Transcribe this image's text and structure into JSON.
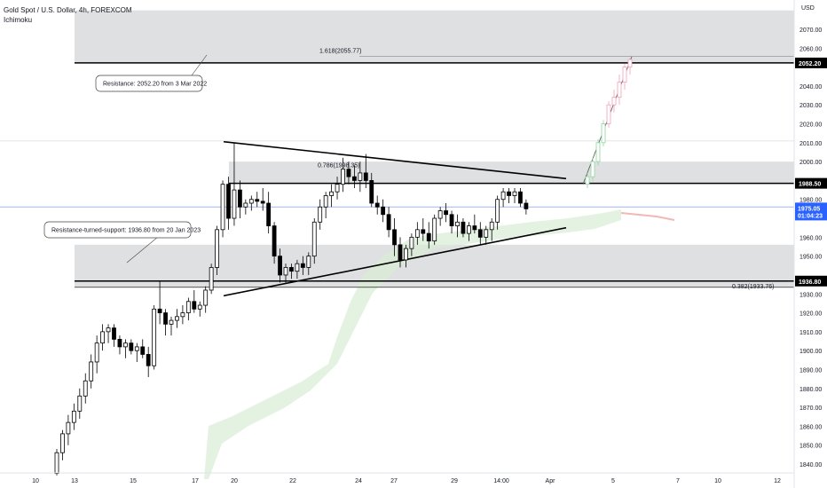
{
  "header": {
    "symbol_line": "Gold Spot / U.S. Dollar, 4h, FOREXCOM",
    "indicator": "Ichimoku"
  },
  "chart_data": {
    "type": "candlestick",
    "currency_label": "USD",
    "y_ticks": [
      1840,
      1850,
      1860,
      1870,
      1880,
      1890,
      1900,
      1910,
      1920,
      1930,
      1950,
      1960,
      1980,
      1990,
      2000,
      2010,
      2020,
      2030,
      2040,
      2060,
      2070
    ],
    "ylim": [
      1836,
      2080
    ],
    "x_ticks": [
      "10",
      "13",
      "15",
      "17",
      "20",
      "22",
      "24",
      "27",
      "29",
      "14:00",
      "Apr",
      "5",
      "7",
      "10",
      "12"
    ],
    "levels": {
      "resistance": "2052.20",
      "mid_resistance": "1988.50",
      "support": "1936.80",
      "current_price": "1975.05",
      "countdown": "01:04:23"
    },
    "fib_labels": {
      "ext": "1.618(2055.77)",
      "fib786": "0.786(1998.35)",
      "fib382": "0.382(1933.76)"
    },
    "annotations": {
      "resistance": "Resistance: 2052.20 from 3 Mar 2022",
      "support": "Resistance-turned-support: 1936.80 from 20 Jan 2023"
    },
    "zones": [
      {
        "from": 2052.2,
        "to": 2080
      },
      {
        "from": 1988.5,
        "to": 2000
      },
      {
        "from": 1933.5,
        "to": 1956
      }
    ],
    "candles": [
      [
        1835,
        1848,
        1834,
        1846
      ],
      [
        1846,
        1858,
        1842,
        1856
      ],
      [
        1856,
        1866,
        1850,
        1862
      ],
      [
        1862,
        1872,
        1858,
        1868
      ],
      [
        1868,
        1880,
        1864,
        1876
      ],
      [
        1876,
        1888,
        1872,
        1884
      ],
      [
        1884,
        1898,
        1880,
        1894
      ],
      [
        1894,
        1908,
        1888,
        1904
      ],
      [
        1904,
        1914,
        1900,
        1910
      ],
      [
        1910,
        1914,
        1904,
        1912
      ],
      [
        1912,
        1914,
        1902,
        1906
      ],
      [
        1906,
        1908,
        1898,
        1902
      ],
      [
        1902,
        1906,
        1896,
        1904
      ],
      [
        1904,
        1906,
        1898,
        1900
      ],
      [
        1900,
        1904,
        1894,
        1902
      ],
      [
        1902,
        1906,
        1896,
        1898
      ],
      [
        1898,
        1902,
        1886,
        1892
      ],
      [
        1892,
        1924,
        1890,
        1922
      ],
      [
        1922,
        1937,
        1914,
        1920
      ],
      [
        1920,
        1922,
        1908,
        1914
      ],
      [
        1914,
        1918,
        1908,
        1916
      ],
      [
        1916,
        1922,
        1912,
        1918
      ],
      [
        1918,
        1924,
        1914,
        1920
      ],
      [
        1920,
        1928,
        1916,
        1926
      ],
      [
        1926,
        1932,
        1920,
        1922
      ],
      [
        1922,
        1926,
        1918,
        1924
      ],
      [
        1924,
        1934,
        1920,
        1932
      ],
      [
        1932,
        1946,
        1930,
        1944
      ],
      [
        1944,
        1966,
        1940,
        1964
      ],
      [
        1964,
        1990,
        1960,
        1988
      ],
      [
        1988,
        1992,
        1964,
        1970
      ],
      [
        1970,
        2010,
        1966,
        1985
      ],
      [
        1985,
        1990,
        1970,
        1976
      ],
      [
        1976,
        1980,
        1972,
        1978
      ],
      [
        1978,
        1982,
        1974,
        1980
      ],
      [
        1980,
        1984,
        1976,
        1979
      ],
      [
        1979,
        1986,
        1974,
        1978
      ],
      [
        1978,
        1984,
        1962,
        1966
      ],
      [
        1966,
        1968,
        1946,
        1950
      ],
      [
        1950,
        1954,
        1936,
        1940
      ],
      [
        1940,
        1946,
        1936,
        1944
      ],
      [
        1944,
        1946,
        1938,
        1942
      ],
      [
        1942,
        1948,
        1938,
        1946
      ],
      [
        1946,
        1950,
        1940,
        1944
      ],
      [
        1944,
        1952,
        1940,
        1950
      ],
      [
        1950,
        1970,
        1946,
        1968
      ],
      [
        1968,
        1980,
        1964,
        1976
      ],
      [
        1976,
        1984,
        1970,
        1982
      ],
      [
        1982,
        1988,
        1976,
        1984
      ],
      [
        1984,
        1992,
        1980,
        1988
      ],
      [
        1988,
        2002,
        1984,
        1996
      ],
      [
        1996,
        2000,
        1988,
        1992
      ],
      [
        1992,
        1998,
        1986,
        1990
      ],
      [
        1990,
        2000,
        1984,
        1994
      ],
      [
        1994,
        2004,
        1986,
        1990
      ],
      [
        1990,
        1994,
        1976,
        1978
      ],
      [
        1978,
        1982,
        1972,
        1976
      ],
      [
        1976,
        1980,
        1968,
        1972
      ],
      [
        1972,
        1976,
        1960,
        1964
      ],
      [
        1964,
        1970,
        1950,
        1956
      ],
      [
        1956,
        1960,
        1944,
        1948
      ],
      [
        1948,
        1956,
        1944,
        1954
      ],
      [
        1954,
        1962,
        1950,
        1960
      ],
      [
        1960,
        1968,
        1956,
        1964
      ],
      [
        1964,
        1970,
        1958,
        1962
      ],
      [
        1962,
        1968,
        1954,
        1958
      ],
      [
        1958,
        1972,
        1956,
        1970
      ],
      [
        1970,
        1976,
        1966,
        1974
      ],
      [
        1974,
        1978,
        1968,
        1972
      ],
      [
        1972,
        1974,
        1962,
        1966
      ],
      [
        1966,
        1972,
        1960,
        1968
      ],
      [
        1968,
        1970,
        1960,
        1962
      ],
      [
        1962,
        1968,
        1958,
        1966
      ],
      [
        1966,
        1972,
        1962,
        1964
      ],
      [
        1964,
        1968,
        1956,
        1960
      ],
      [
        1960,
        1966,
        1956,
        1964
      ],
      [
        1964,
        1970,
        1958,
        1968
      ],
      [
        1968,
        1982,
        1964,
        1980
      ],
      [
        1980,
        1986,
        1976,
        1984
      ],
      [
        1984,
        1986,
        1978,
        1982
      ],
      [
        1982,
        1986,
        1978,
        1984
      ],
      [
        1984,
        1986,
        1976,
        1978
      ],
      [
        1978,
        1980,
        1972,
        1975
      ]
    ],
    "projection": [
      [
        1988,
        1994,
        1986,
        1992
      ],
      [
        1992,
        2002,
        1990,
        2000
      ],
      [
        2000,
        2012,
        1998,
        2010
      ],
      [
        2010,
        2022,
        2008,
        2020
      ],
      [
        2020,
        2032,
        2018,
        2030
      ],
      [
        2030,
        2038,
        2026,
        2034
      ],
      [
        2034,
        2046,
        2030,
        2042
      ],
      [
        2042,
        2052,
        2038,
        2050
      ],
      [
        2050,
        2055,
        2046,
        2054
      ]
    ]
  }
}
